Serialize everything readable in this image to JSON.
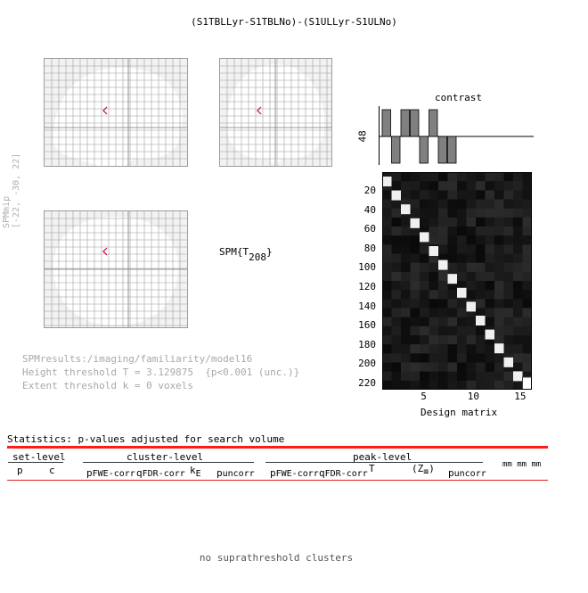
{
  "title": "(S1TBLLyr-S1TBLNo)-(S1ULLyr-S1ULNo)",
  "spmmip": {
    "label": "SPMmip",
    "coords": "[-22, -30, 22]"
  },
  "spm_stat": {
    "prefix": "SPM{T",
    "sub": "208",
    "suffix": "}"
  },
  "info": {
    "results_path": "SPMresults:/imaging/familiarity/model16",
    "height_threshold": "Height threshold T = 3.129875  {p<0.001 (unc.)}",
    "extent_threshold": "Extent threshold k = 0 voxels"
  },
  "contrast": {
    "title": "contrast",
    "ylabel": "48",
    "weights": [
      1,
      -1,
      1,
      1,
      -1,
      1,
      -1,
      -1,
      0,
      0,
      0,
      0,
      0,
      0,
      0,
      0
    ]
  },
  "design_matrix": {
    "xlabel": "Design matrix",
    "y_ticks": [
      "20",
      "40",
      "60",
      "80",
      "100",
      "120",
      "140",
      "160",
      "180",
      "200",
      "220"
    ],
    "x_ticks": [
      "5",
      "10",
      "15"
    ]
  },
  "statistics": {
    "header": "Statistics:  p-values adjusted for search volume",
    "groups": {
      "set": "set-level",
      "cluster": "cluster-level",
      "peak": "peak-level"
    },
    "columns": {
      "set_p": "p",
      "set_c": "c",
      "cl_fwe_p": "p",
      "cl_fwe_sub": "FWE-corr",
      "cl_fdr_q": "q",
      "cl_fdr_sub": "FDR-corr",
      "k": "k",
      "k_sub": "E",
      "cl_unc_p": "p",
      "cl_unc_sub": "uncorr",
      "pk_fwe_p": "p",
      "pk_fwe_sub": "FWE-corr",
      "pk_fdr_q": "q",
      "pk_fdr_sub": "FDR-corr",
      "T": "T",
      "Z": "(Z",
      "Z_sub": "≡",
      "Z_close": ")",
      "pk_unc_p": "p",
      "pk_unc_sub": "uncorr",
      "mm": "mm mm mm"
    },
    "empty_message": "no suprathreshold clusters"
  },
  "colors": {
    "glass_bg": "#f2f2f2",
    "grid": "#9c9c9c",
    "marker": "#cc0033",
    "red_rule": "#ff1b1b",
    "contrast_bar": "#808080"
  }
}
